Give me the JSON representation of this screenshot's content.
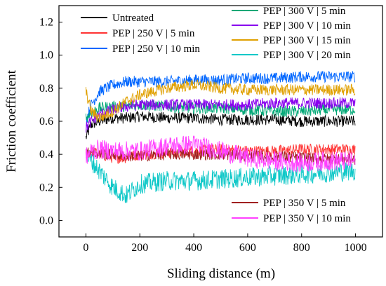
{
  "chart_data": {
    "type": "line",
    "title": "",
    "xlabel": "Sliding distance (m)",
    "ylabel": "Friction coefficient",
    "xlim": [
      -100,
      1100
    ],
    "ylim": [
      -0.1,
      1.3
    ],
    "x_ticks": [
      "0",
      "200",
      "400",
      "600",
      "800",
      "1000"
    ],
    "y_ticks": [
      "0.0",
      "0.2",
      "0.4",
      "0.6",
      "0.8",
      "1.0",
      "1.2"
    ],
    "grid": false,
    "legend_placement": "inside, top and bottom",
    "series": [
      {
        "name": "Untreated",
        "color": "#000000",
        "x": [
          0,
          20,
          50,
          100,
          150,
          200,
          300,
          400,
          500,
          600,
          700,
          800,
          900,
          1000
        ],
        "y": [
          0.5,
          0.58,
          0.6,
          0.62,
          0.62,
          0.63,
          0.62,
          0.62,
          0.61,
          0.61,
          0.61,
          0.6,
          0.6,
          0.6
        ]
      },
      {
        "name": "PEP | 250 V | 5 min",
        "color": "#ff3333",
        "x": [
          0,
          20,
          50,
          100,
          150,
          200,
          300,
          400,
          500,
          600,
          700,
          800,
          900,
          1000
        ],
        "y": [
          0.4,
          0.42,
          0.4,
          0.38,
          0.38,
          0.4,
          0.41,
          0.42,
          0.43,
          0.42,
          0.42,
          0.43,
          0.43,
          0.43
        ]
      },
      {
        "name": "PEP | 250 V | 10 min",
        "color": "#0066ff",
        "x": [
          0,
          20,
          50,
          100,
          150,
          200,
          300,
          400,
          500,
          600,
          700,
          800,
          900,
          1000
        ],
        "y": [
          0.6,
          0.7,
          0.78,
          0.82,
          0.84,
          0.84,
          0.84,
          0.85,
          0.85,
          0.86,
          0.86,
          0.87,
          0.87,
          0.87
        ]
      },
      {
        "name": "PEP | 300 V | 5 min",
        "color": "#00a876",
        "x": [
          0,
          20,
          50,
          100,
          150,
          200,
          300,
          400,
          500,
          600,
          700,
          800,
          900,
          1000
        ],
        "y": [
          0.62,
          0.65,
          0.68,
          0.69,
          0.69,
          0.7,
          0.69,
          0.68,
          0.68,
          0.67,
          0.66,
          0.66,
          0.67,
          0.67
        ]
      },
      {
        "name": "PEP | 300 V | 10 min",
        "color": "#8800ee",
        "x": [
          0,
          20,
          50,
          100,
          150,
          200,
          300,
          400,
          500,
          600,
          700,
          800,
          900,
          1000
        ],
        "y": [
          0.56,
          0.6,
          0.64,
          0.67,
          0.69,
          0.7,
          0.7,
          0.7,
          0.7,
          0.7,
          0.71,
          0.71,
          0.71,
          0.71
        ]
      },
      {
        "name": "PEP | 300 V | 15 min",
        "color": "#e0a000",
        "x": [
          0,
          20,
          50,
          100,
          150,
          200,
          300,
          400,
          500,
          600,
          700,
          800,
          900,
          1000
        ],
        "y": [
          0.78,
          0.66,
          0.62,
          0.66,
          0.72,
          0.76,
          0.8,
          0.82,
          0.8,
          0.79,
          0.79,
          0.79,
          0.79,
          0.79
        ]
      },
      {
        "name": "PEP | 300 V | 20 min",
        "color": "#10c8c8",
        "x": [
          0,
          20,
          50,
          100,
          150,
          200,
          300,
          400,
          500,
          600,
          700,
          800,
          900,
          1000
        ],
        "y": [
          0.4,
          0.36,
          0.3,
          0.2,
          0.15,
          0.22,
          0.24,
          0.24,
          0.25,
          0.26,
          0.27,
          0.28,
          0.29,
          0.3
        ]
      },
      {
        "name": "PEP | 350 V | 5 min",
        "color": "#a02020",
        "x": [
          0,
          20,
          50,
          100,
          150,
          200,
          300,
          400,
          500,
          600,
          700,
          800,
          900,
          1000
        ],
        "y": [
          0.4,
          0.42,
          0.4,
          0.4,
          0.39,
          0.39,
          0.4,
          0.4,
          0.4,
          0.39,
          0.39,
          0.38,
          0.37,
          0.37
        ]
      },
      {
        "name": "PEP | 350 V | 10 min",
        "color": "#ff40ff",
        "x": [
          0,
          20,
          50,
          100,
          150,
          200,
          300,
          400,
          500,
          600,
          700,
          800,
          900,
          1000
        ],
        "y": [
          0.38,
          0.42,
          0.43,
          0.42,
          0.42,
          0.42,
          0.45,
          0.46,
          0.42,
          0.38,
          0.36,
          0.35,
          0.36,
          0.36
        ]
      }
    ],
    "legend_top": [
      "Untreated",
      "PEP | 250 V | 5 min",
      "PEP | 250 V | 10 min"
    ],
    "legend_top_right": [
      "PEP | 300 V | 5 min",
      "PEP | 300 V | 10 min",
      "PEP | 300 V | 15 min",
      "PEP | 300 V | 20 min"
    ],
    "legend_bottom_right": [
      "PEP | 350 V | 5 min",
      "PEP | 350 V | 10 min"
    ]
  }
}
